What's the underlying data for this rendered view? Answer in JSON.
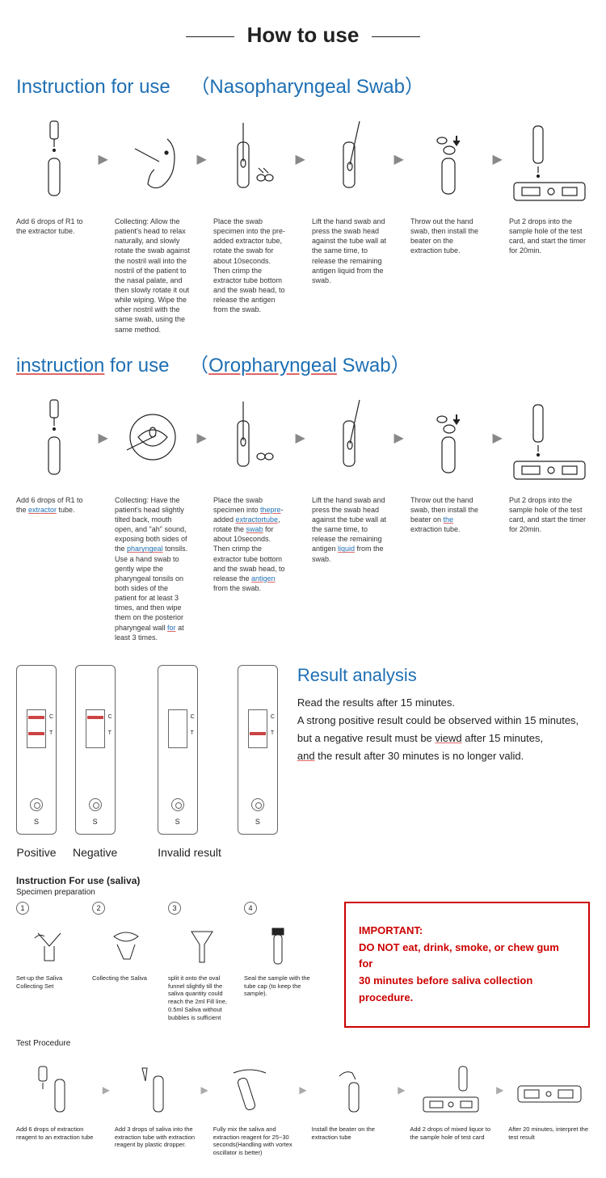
{
  "main_title": "How to use",
  "nasopharyngeal": {
    "title_prefix": "Instruction for use",
    "title_sub": "（Nasopharyngeal Swab）",
    "steps": [
      {
        "text": "Add 6 drops of R1 to the extractor tube."
      },
      {
        "text": "Collecting: Allow the patient's head to relax naturally, and slowly rotate the swab against the nostril wall into the nostril of the patient to the nasal palate, and then slowly rotate it out while wiping. Wipe the other nostril with the same swab, using the same method."
      },
      {
        "text": "Place the swab specimen into the pre-added extractor tube, rotate the swab for about 10seconds. Then crimp the extractor tube bottom and the swab head, to release the antigen from the swab."
      },
      {
        "text": "Lift the hand swab and press the swab head against the tube wall at the same time, to release the remaining antigen liquid from the swab."
      },
      {
        "text": "Throw out the hand swab, then install the beater on the extraction tube."
      },
      {
        "text": "Put 2 drops into the sample hole of the test card, and start the timer for 20min."
      }
    ]
  },
  "oropharyngeal": {
    "title_prefix_u": "instruction",
    "title_mid": " for use",
    "title_sub_u": "Oropharyngeal",
    "title_sub_plain": " Swab）",
    "steps": [
      {
        "html": "Add 6 drops of R1 to the <span class='blue-word'>extractor</span> tube."
      },
      {
        "html": "Collecting: Have the patient's head slightly tilted back, mouth open, and \"ah\" sound, exposing both sides of the <span class='blue-word'>pharyngeal</span> tonsils. Use a hand swab to gently wipe the pharyngeal tonsils on both sides of the patient for at least 3 times, and then wipe them on the posterior pharyngeal wall <span class='blue-word'>for</span> at least 3 times."
      },
      {
        "html": "Place the swab specimen into <span class='blue-word'>thepre</span>-added <span class='blue-word'>extractortube</span>, rotate the <span class='blue-word'>swab</span> for about 10seconds. Then crimp the extractor tube bottom and the swab head, to release the <span class='blue-word'>antigen</span> from the swab."
      },
      {
        "html": "Lift the hand swab and press the swab head against the tube wall at the same time, to release the remaining antigen <span class='blue-word'>liquid</span> from the swab."
      },
      {
        "html": "Throw out the hand swab, then install the beater on <span class='blue-word'>the</span> extraction tube."
      },
      {
        "html": "Put 2 drops into the sample hole of the test card, and start the timer for 20min."
      }
    ]
  },
  "result": {
    "title": "Result analysis",
    "body_l1": "Read the results after 15 minutes.",
    "body_l2": "A strong positive result could be observed within 15 minutes,",
    "body_l3_pre": "but a negative result must be ",
    "body_l3_u": "viewd",
    "body_l3_post": " after 15 minutes,",
    "body_l4_u": "and",
    "body_l4_post": " the result after 30 minutes is no longer valid.",
    "labels": {
      "positive": "Positive",
      "negative": "Negative",
      "invalid": "Invalid result"
    }
  },
  "saliva": {
    "header": "Instruction For use (saliva)",
    "prep_label": "Specimen preparation",
    "prep_steps": [
      {
        "n": "1",
        "txt": "Set-up the Saliva Collecting Set"
      },
      {
        "n": "2",
        "txt": "Collecting the Saliva"
      },
      {
        "n": "3",
        "txt": "split it onto the oval funnel slightly till the saliva quantity could reach the 2ml Fill line, 0.5ml Saliva without bubbles is sufficient"
      },
      {
        "n": "4",
        "txt": "Seal the sample with the tube cap (to keep the sample)."
      }
    ],
    "important_title": "IMPORTANT:",
    "important_l1": "DO NOT eat, drink, smoke, or chew gum for",
    "important_l2": " 30 minutes before saliva collection procedure.",
    "proc_label": "Test Procedure",
    "proc_steps": [
      {
        "txt": "Add 6 drops of extraction reagent to an extraction tube"
      },
      {
        "txt": "Add 3 drops of saliva into the extraction tube with extraction reagent by plastic dropper."
      },
      {
        "txt": "Fully mix the saliva and extraction reagent for 25~30 seconds(Handling with vortex oscillator is better)"
      },
      {
        "txt": "Install the beater on the extraction tube"
      },
      {
        "txt": "Add 2 drops of mixed liquor to the sample hole of test card"
      },
      {
        "txt": "After 20 minutes, interpret the test result"
      }
    ]
  },
  "colors": {
    "accent": "#1e6fb4",
    "red": "#cc0000",
    "arrow": "#888"
  }
}
